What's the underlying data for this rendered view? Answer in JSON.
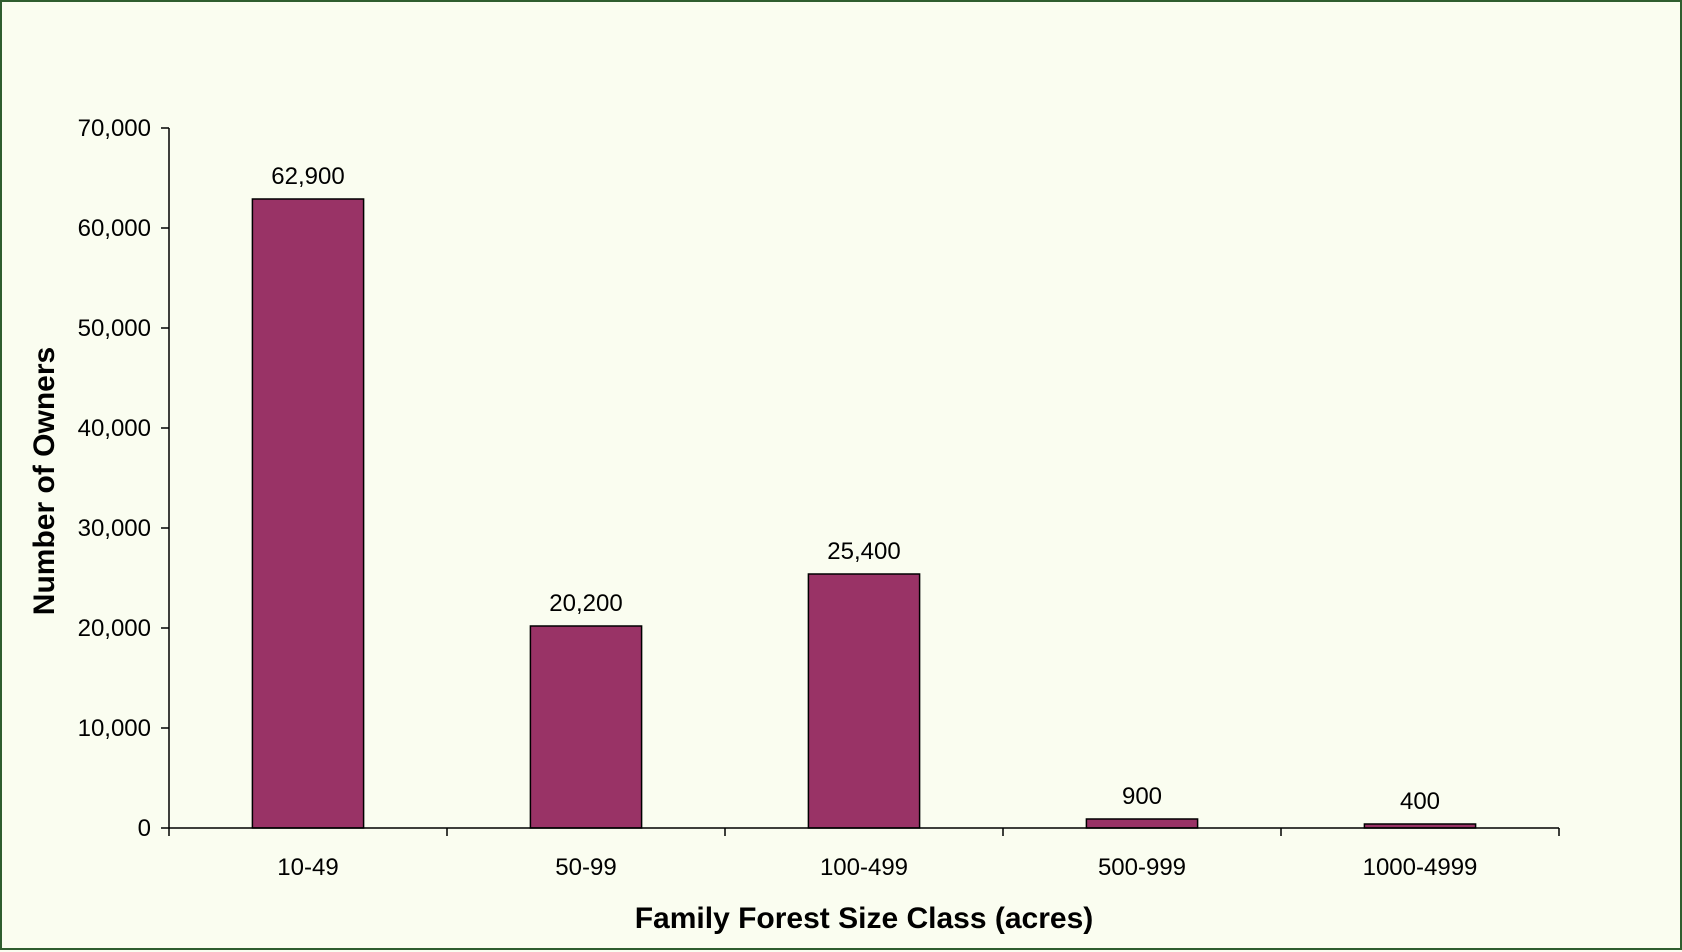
{
  "chart_data": {
    "type": "bar",
    "title": "",
    "xlabel": "Family Forest Size Class (acres)",
    "ylabel": "Number of Owners",
    "categories": [
      "10-49",
      "50-99",
      "100-499",
      "500-999",
      "1000-4999"
    ],
    "values": [
      62900,
      20200,
      25400,
      900,
      400
    ],
    "value_labels": [
      "62,900",
      "20,200",
      "25,400",
      "900",
      "400"
    ],
    "ylim": [
      0,
      70000
    ],
    "yticks": [
      0,
      10000,
      20000,
      30000,
      40000,
      50000,
      60000,
      70000
    ],
    "ytick_labels": [
      "0",
      "10,000",
      "20,000",
      "30,000",
      "40,000",
      "50,000",
      "60,000",
      "70,000"
    ],
    "grid": false,
    "legend": "none",
    "bar_color": "#993366",
    "background_color": "#fafdf0",
    "frame_color": "#2f5e2f"
  }
}
